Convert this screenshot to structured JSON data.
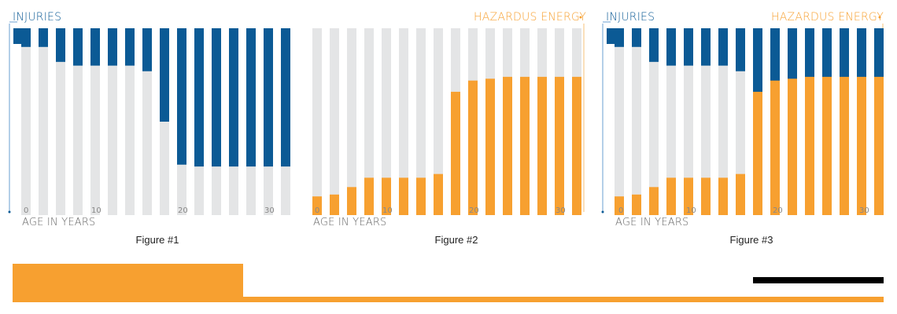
{
  "colors": {
    "injuries": "#0b5a95",
    "hazard": "#f7a030",
    "bar_bg": "#e4e5e6"
  },
  "labels": {
    "injuries": "INJURIES",
    "hazard": "HAZARDUS ENERGY",
    "xlabel": "AGE IN YEARS",
    "tick_0": "0",
    "tick_10": "10",
    "tick_20": "20",
    "tick_30": "30"
  },
  "captions": [
    "Figure #1",
    "Figure #2",
    "Figure #3"
  ],
  "chart_data": [
    {
      "type": "bar",
      "title": "Figure #1",
      "xlabel": "AGE IN YEARS",
      "ylabel": "INJURIES",
      "xlim": [
        0,
        30
      ],
      "x_ticks": [
        0,
        10,
        20,
        30
      ],
      "series": [
        {
          "name": "INJURIES",
          "direction": "down",
          "x": [
            0,
            2,
            4,
            6,
            8,
            10,
            12,
            14,
            16,
            18,
            20,
            22,
            24,
            26,
            28,
            30
          ],
          "values": [
            0.1,
            0.1,
            0.18,
            0.2,
            0.2,
            0.2,
            0.2,
            0.23,
            0.5,
            0.73,
            0.74,
            0.74,
            0.74,
            0.74,
            0.74,
            0.74
          ]
        }
      ]
    },
    {
      "type": "bar",
      "title": "Figure #2",
      "xlabel": "AGE IN YEARS",
      "ylabel": "HAZARDUS ENERGY",
      "xlim": [
        0,
        30
      ],
      "x_ticks": [
        0,
        10,
        20,
        30
      ],
      "series": [
        {
          "name": "HAZARDUS ENERGY",
          "direction": "up",
          "x": [
            0,
            2,
            4,
            6,
            8,
            10,
            12,
            14,
            16,
            18,
            20,
            22,
            24,
            26,
            28,
            30
          ],
          "values": [
            0.1,
            0.11,
            0.15,
            0.2,
            0.2,
            0.2,
            0.2,
            0.22,
            0.66,
            0.72,
            0.73,
            0.74,
            0.74,
            0.74,
            0.74,
            0.74
          ]
        }
      ]
    },
    {
      "type": "bar",
      "title": "Figure #3",
      "xlabel": "AGE IN YEARS",
      "ylabel": "INJURIES / HAZARDUS ENERGY",
      "xlim": [
        0,
        30
      ],
      "x_ticks": [
        0,
        10,
        20,
        30
      ],
      "series": [
        {
          "name": "INJURIES",
          "direction": "down",
          "x": [
            0,
            2,
            4,
            6,
            8,
            10,
            12,
            14,
            16,
            18,
            20,
            22,
            24,
            26,
            28,
            30
          ],
          "values": [
            0.1,
            0.1,
            0.18,
            0.2,
            0.2,
            0.2,
            0.2,
            0.23,
            0.5,
            0.73,
            0.74,
            0.74,
            0.74,
            0.74,
            0.74,
            0.74
          ]
        },
        {
          "name": "HAZARDUS ENERGY",
          "direction": "up",
          "x": [
            0,
            2,
            4,
            6,
            8,
            10,
            12,
            14,
            16,
            18,
            20,
            22,
            24,
            26,
            28,
            30
          ],
          "values": [
            0.1,
            0.11,
            0.15,
            0.2,
            0.2,
            0.2,
            0.2,
            0.22,
            0.66,
            0.72,
            0.73,
            0.74,
            0.74,
            0.74,
            0.74,
            0.74
          ]
        }
      ]
    }
  ]
}
